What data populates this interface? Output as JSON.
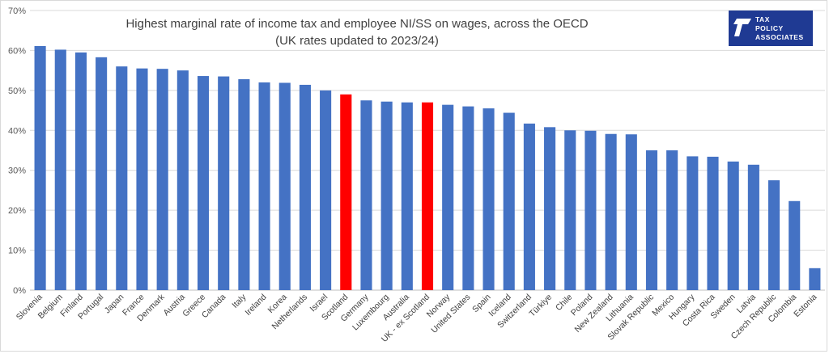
{
  "chart_data": {
    "type": "bar",
    "title": "Highest marginal rate of income tax and employee NI/SS on wages, across the OECD",
    "subtitle": "(UK rates updated to 2023/24)",
    "xlabel": "",
    "ylabel": "",
    "ylim": [
      0,
      70
    ],
    "y_ticks": [
      "0%",
      "10%",
      "20%",
      "30%",
      "40%",
      "50%",
      "60%",
      "70%"
    ],
    "grid": true,
    "legend": "none",
    "bar_color": "#4472C4",
    "highlight_color": "#FF0000",
    "highlighted": [
      "Scotland",
      "UK - ex Scotland"
    ],
    "categories": [
      "Slovenia",
      "Belgium",
      "Finland",
      "Portugal",
      "Japan",
      "France",
      "Denmark",
      "Austria",
      "Greece",
      "Canada",
      "Italy",
      "Ireland",
      "Korea",
      "Netherlands",
      "Israel",
      "Scotland",
      "Germany",
      "Luxembourg",
      "Australia",
      "UK - ex Scotland",
      "Norway",
      "United States",
      "Spain",
      "Iceland",
      "Switzerland",
      "Türkiye",
      "Chile",
      "Poland",
      "New Zealand",
      "Lithuania",
      "Slovak Republic",
      "Mexico",
      "Hungary",
      "Costa Rica",
      "Sweden",
      "Latvia",
      "Czech Republic",
      "Colombia",
      "Estonia"
    ],
    "values": [
      61.1,
      60.2,
      59.5,
      58.3,
      56.0,
      55.5,
      55.4,
      55.0,
      53.6,
      53.5,
      52.8,
      52.0,
      51.9,
      51.4,
      50.0,
      49.0,
      47.5,
      47.2,
      47.0,
      47.0,
      46.4,
      46.0,
      45.5,
      44.4,
      41.7,
      40.8,
      40.0,
      39.9,
      39.1,
      39.0,
      35.0,
      35.0,
      33.5,
      33.4,
      32.2,
      31.4,
      27.5,
      22.3,
      5.5
    ]
  },
  "logo": {
    "line1": "TAX",
    "line2": "POLICY",
    "line3": "ASSOCIATES",
    "bg_color": "#1F3A93"
  }
}
